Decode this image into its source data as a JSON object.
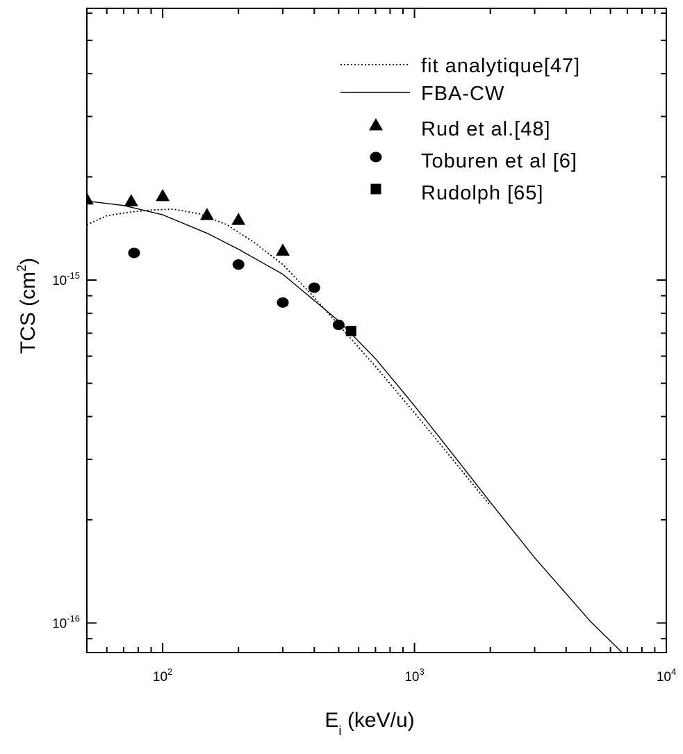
{
  "chart_data": {
    "type": "scatter",
    "x_scale": "log",
    "y_scale": "log",
    "xlim": [
      50,
      10000
    ],
    "ylim": [
      8.2e-17,
      6.2e-15
    ],
    "x_ticks": [
      {
        "value": 100,
        "base": "10",
        "exp": "2"
      },
      {
        "value": 1000,
        "base": "10",
        "exp": "3"
      },
      {
        "value": 10000,
        "base": "10",
        "exp": "4"
      }
    ],
    "y_ticks": [
      {
        "value": 1e-15,
        "base": "10",
        "exp": "-15"
      },
      {
        "value": 1e-16,
        "base": "10",
        "exp": "-16"
      }
    ],
    "xlabel": {
      "main": "E",
      "sub": "i",
      "rest": " (keV/u)"
    },
    "ylabel": {
      "main": "TCS (cm",
      "sup": "2",
      "rest": ")"
    },
    "legend_position": "top-right",
    "series": [
      {
        "name": "fit analytique[47]",
        "style": "dotted-line",
        "x": [
          50,
          60,
          75,
          90,
          110,
          140,
          180,
          230,
          300,
          400,
          500,
          700,
          1000,
          1500,
          2000
        ],
        "y": [
          1.45e-15,
          1.54e-15,
          1.58e-15,
          1.6e-15,
          1.61e-15,
          1.56e-15,
          1.45e-15,
          1.29e-15,
          1.11e-15,
          8.9e-16,
          7.4e-16,
          5.6e-16,
          4.1e-16,
          2.85e-16,
          2.2e-16
        ]
      },
      {
        "name": "FBA-CW",
        "style": "solid-line",
        "x": [
          50,
          70,
          100,
          150,
          200,
          300,
          500,
          700,
          1000,
          1500,
          2000,
          3000,
          5000,
          8000
        ],
        "y": [
          1.7e-15,
          1.65e-15,
          1.55e-15,
          1.37e-15,
          1.23e-15,
          1.04e-15,
          7.6e-16,
          5.9e-16,
          4.3e-16,
          2.95e-16,
          2.25e-16,
          1.55e-16,
          1.01e-16,
          7.2e-17
        ]
      },
      {
        "name": "Rud et al.[48]",
        "style": "triangle",
        "x": [
          50,
          75,
          100,
          150,
          200,
          300
        ],
        "y": [
          1.72e-15,
          1.7e-15,
          1.76e-15,
          1.55e-15,
          1.5e-15,
          1.22e-15
        ]
      },
      {
        "name": "Toburen et al [6]",
        "style": "circle",
        "x": [
          77,
          200,
          300,
          400,
          500
        ],
        "y": [
          1.2e-15,
          1.11e-15,
          8.6e-16,
          9.5e-16,
          7.4e-16
        ]
      },
      {
        "name": "Rudolph [65]",
        "style": "square",
        "x": [
          560
        ],
        "y": [
          7.1e-16
        ]
      }
    ]
  }
}
